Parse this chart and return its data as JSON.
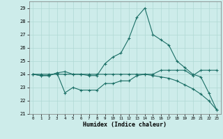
{
  "xlabel": "Humidex (Indice chaleur)",
  "bg_color": "#cdecea",
  "grid_color": "#b0d8d4",
  "line_color": "#1a6e65",
  "x_values": [
    0,
    1,
    2,
    3,
    4,
    5,
    6,
    7,
    8,
    9,
    10,
    11,
    12,
    13,
    14,
    15,
    16,
    17,
    18,
    19,
    20,
    21,
    22,
    23
  ],
  "series1": [
    24.0,
    23.9,
    23.9,
    24.1,
    22.6,
    23.0,
    22.8,
    22.8,
    22.8,
    23.3,
    23.3,
    23.5,
    23.5,
    23.9,
    24.0,
    23.9,
    23.8,
    23.7,
    23.5,
    23.2,
    22.9,
    22.5,
    22.0,
    21.3
  ],
  "series2": [
    24.0,
    23.9,
    23.9,
    24.1,
    24.2,
    24.0,
    24.0,
    23.9,
    23.9,
    24.8,
    25.3,
    25.6,
    26.7,
    28.3,
    29.0,
    27.0,
    26.6,
    26.2,
    25.0,
    24.5,
    24.0,
    23.8,
    22.6,
    21.3
  ],
  "series3": [
    24.0,
    24.0,
    24.0,
    24.0,
    24.0,
    24.0,
    24.0,
    24.0,
    24.0,
    24.0,
    24.0,
    24.0,
    24.0,
    24.0,
    24.0,
    24.0,
    24.3,
    24.3,
    24.3,
    24.3,
    23.9,
    24.3,
    24.3,
    24.3
  ],
  "ylim": [
    21,
    29.5
  ],
  "yticks": [
    21,
    22,
    23,
    24,
    25,
    26,
    27,
    28,
    29
  ],
  "xticks": [
    0,
    1,
    2,
    3,
    4,
    5,
    6,
    7,
    8,
    9,
    10,
    11,
    12,
    13,
    14,
    15,
    16,
    17,
    18,
    19,
    20,
    21,
    22,
    23
  ]
}
